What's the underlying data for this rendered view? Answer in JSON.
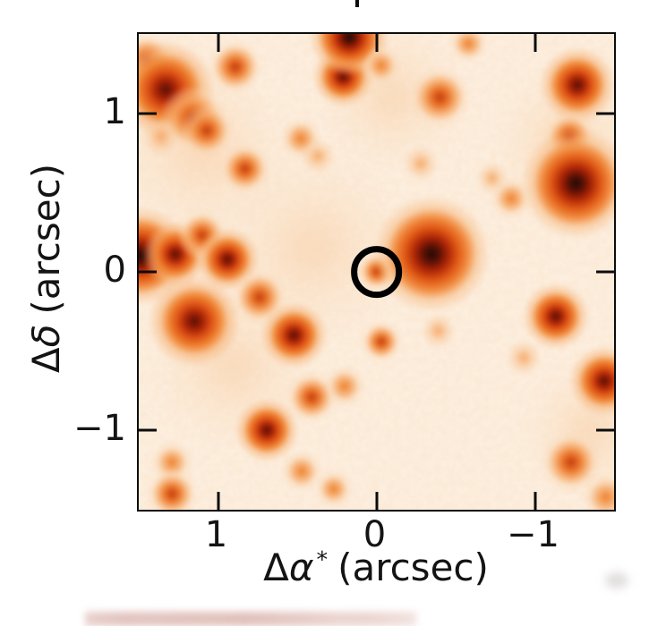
{
  "figure": {
    "xlabel": {
      "delta": "Δ",
      "symbol": "α",
      "superscript": "*",
      "unit": "(arcsec)"
    },
    "ylabel": {
      "delta": "Δ",
      "symbol": "δ",
      "unit": "(arcsec)"
    }
  },
  "chart_data": {
    "type": "heatmap",
    "description": "Astronomical cutout image of a crowded star field, orange colormap (white = faint, dark red/black = bright), with a black circle marking the target at the origin.",
    "xlabel": "Δα* (arcsec)",
    "ylabel": "Δδ (arcsec)",
    "xlim": [
      1.5,
      -1.5
    ],
    "ylim": [
      -1.5,
      1.5
    ],
    "x_ticks": [
      1,
      0,
      -1
    ],
    "y_ticks": [
      1,
      0,
      -1
    ],
    "x_tick_labels": [
      "1",
      "0",
      "−1"
    ],
    "y_tick_labels": [
      "1",
      "0",
      "−1"
    ],
    "grid": false,
    "legend": false,
    "colormap": "Oranges (white to dark red)",
    "background_level_color": "#fdf1e3",
    "accent_colors": {
      "faint": "#f5a664",
      "medium": "#ee8330",
      "strong": "#dd5014",
      "core": "#200a04"
    },
    "marker": {
      "shape": "circle",
      "x": 0.0,
      "y": 0.0,
      "radius_arcsec": 0.163,
      "stroke_color": "#000000",
      "meaning": "target position"
    },
    "sources": [
      {
        "x": 1.1,
        "y": 0.75,
        "i": 0.12,
        "r": 0.55
      },
      {
        "x": 0.4,
        "y": 0.15,
        "i": 0.12,
        "r": 0.6
      },
      {
        "x": 0.9,
        "y": -0.6,
        "i": 0.1,
        "r": 0.5
      },
      {
        "x": -0.1,
        "y": 1.1,
        "i": 0.1,
        "r": 0.45
      },
      {
        "x": -1.2,
        "y": 0.8,
        "i": 0.1,
        "r": 0.45
      },
      {
        "x": -1.35,
        "y": -1.0,
        "i": 0.1,
        "r": 0.4
      },
      {
        "x": 1.45,
        "y": 1.33,
        "i": 0.5,
        "r": 0.17
      },
      {
        "x": 1.33,
        "y": 1.15,
        "i": 0.85,
        "r": 0.31
      },
      {
        "x": 1.16,
        "y": 0.97,
        "i": 0.6,
        "r": 0.21
      },
      {
        "x": 1.07,
        "y": 0.89,
        "i": 0.55,
        "r": 0.17
      },
      {
        "x": 1.36,
        "y": 0.85,
        "i": 0.25,
        "r": 0.12
      },
      {
        "x": 0.89,
        "y": 1.29,
        "i": 0.5,
        "r": 0.17
      },
      {
        "x": 0.83,
        "y": 0.65,
        "i": 0.45,
        "r": 0.16
      },
      {
        "x": 0.48,
        "y": 0.84,
        "i": 0.3,
        "r": 0.13
      },
      {
        "x": 0.37,
        "y": 0.73,
        "i": 0.2,
        "r": 0.11
      },
      {
        "x": 0.21,
        "y": 1.23,
        "i": 0.65,
        "r": 0.19
      },
      {
        "x": 0.17,
        "y": 1.48,
        "i": 0.9,
        "r": 0.25
      },
      {
        "x": -0.03,
        "y": 1.3,
        "i": 0.3,
        "r": 0.12
      },
      {
        "x": -0.4,
        "y": 1.1,
        "i": 0.6,
        "r": 0.19
      },
      {
        "x": -0.58,
        "y": 1.44,
        "i": 0.3,
        "r": 0.12
      },
      {
        "x": -1.27,
        "y": 1.18,
        "i": 0.75,
        "r": 0.24
      },
      {
        "x": -1.22,
        "y": 0.85,
        "i": 0.55,
        "r": 0.16
      },
      {
        "x": -1.26,
        "y": 0.56,
        "i": 0.95,
        "r": 0.35
      },
      {
        "x": -0.85,
        "y": 0.46,
        "i": 0.3,
        "r": 0.13
      },
      {
        "x": -0.73,
        "y": 0.59,
        "i": 0.2,
        "r": 0.1
      },
      {
        "x": -0.28,
        "y": 0.68,
        "i": 0.25,
        "r": 0.11
      },
      {
        "x": 1.49,
        "y": 0.1,
        "i": 0.95,
        "r": 0.31
      },
      {
        "x": 1.27,
        "y": 0.11,
        "i": 0.7,
        "r": 0.21
      },
      {
        "x": 1.1,
        "y": 0.23,
        "i": 0.5,
        "r": 0.16
      },
      {
        "x": 0.94,
        "y": 0.08,
        "i": 0.75,
        "r": 0.2
      },
      {
        "x": 1.15,
        "y": -0.31,
        "i": 0.85,
        "r": 0.29
      },
      {
        "x": 0.74,
        "y": -0.16,
        "i": 0.6,
        "r": 0.17
      },
      {
        "x": 0.52,
        "y": -0.4,
        "i": 0.8,
        "r": 0.21
      },
      {
        "x": 0.0,
        "y": 0.0,
        "i": 0.5,
        "r": 0.12
      },
      {
        "x": -0.35,
        "y": 0.11,
        "i": 1.0,
        "r": 0.37
      },
      {
        "x": 0.41,
        "y": -0.79,
        "i": 0.55,
        "r": 0.16
      },
      {
        "x": 0.2,
        "y": -0.72,
        "i": 0.4,
        "r": 0.13
      },
      {
        "x": -0.03,
        "y": -0.44,
        "i": 0.45,
        "r": 0.13
      },
      {
        "x": -0.39,
        "y": -0.37,
        "i": 0.25,
        "r": 0.11
      },
      {
        "x": -0.93,
        "y": -0.54,
        "i": 0.2,
        "r": 0.11
      },
      {
        "x": -1.13,
        "y": -0.28,
        "i": 0.7,
        "r": 0.21
      },
      {
        "x": -1.44,
        "y": -0.69,
        "i": 0.75,
        "r": 0.22
      },
      {
        "x": -1.23,
        "y": -1.2,
        "i": 0.6,
        "r": 0.19
      },
      {
        "x": 0.69,
        "y": -1.0,
        "i": 0.75,
        "r": 0.2
      },
      {
        "x": 1.29,
        "y": -1.2,
        "i": 0.35,
        "r": 0.13
      },
      {
        "x": 1.29,
        "y": -1.4,
        "i": 0.5,
        "r": 0.16
      },
      {
        "x": 0.47,
        "y": -1.26,
        "i": 0.35,
        "r": 0.13
      },
      {
        "x": 0.27,
        "y": -1.37,
        "i": 0.3,
        "r": 0.12
      },
      {
        "x": -1.45,
        "y": -1.42,
        "i": 0.3,
        "r": 0.15
      }
    ]
  }
}
